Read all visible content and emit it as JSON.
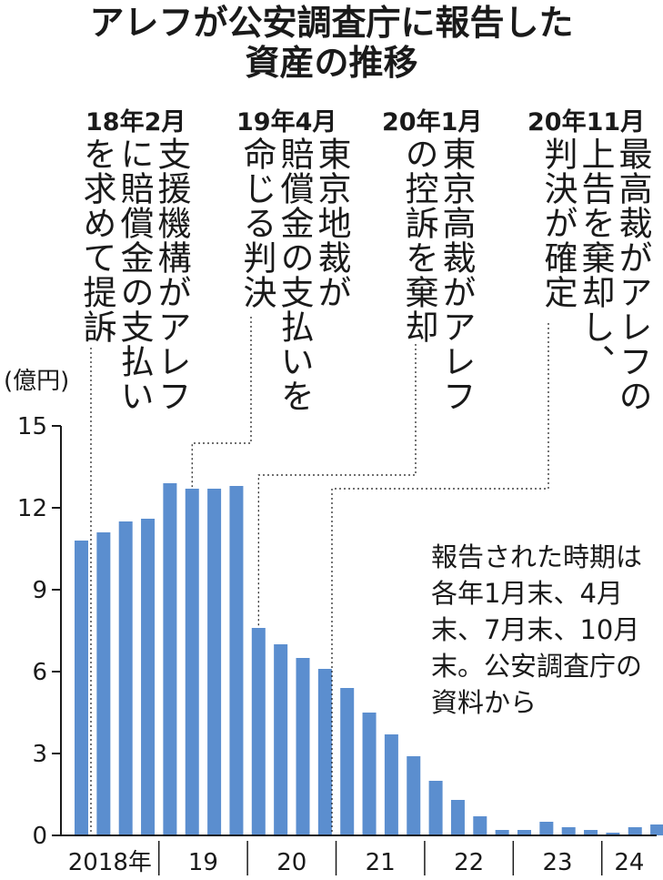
{
  "title_line1": "アレフが公安調査庁に報告した",
  "title_line2": "資産の推移",
  "unit": "(億円)",
  "note": "報告された時期は各年1月末、4月末、7月末、10月末。公安調査庁の資料から",
  "events": [
    {
      "date": "18年2月",
      "text": "支援機構がアレフ\nに賠償金の支払い\nを求めて提訴"
    },
    {
      "date": "19年4月",
      "text": "東京地裁が\n賠償金の支払いを\n命じる判決"
    },
    {
      "date": "20年1月",
      "text": "東京高裁がアレフ\nの控訴を棄却"
    },
    {
      "date": "20年11月",
      "text": "最高裁がアレフの\n上告を棄却し、\n判決が確定"
    }
  ],
  "colors": {
    "bar": "#5b8ecf",
    "text": "#1a1a1a"
  },
  "chart_data": {
    "type": "bar",
    "ylim": [
      0,
      15
    ],
    "yticks": [
      "15",
      "12",
      "9",
      "6",
      "3",
      "0"
    ],
    "year_labels": [
      "2018年",
      "19",
      "20",
      "21",
      "22",
      "23",
      "24"
    ],
    "values": [
      10.8,
      11.1,
      11.5,
      11.6,
      12.9,
      12.7,
      12.7,
      12.8,
      7.6,
      7.0,
      6.5,
      6.1,
      5.4,
      4.5,
      3.7,
      2.9,
      2.0,
      1.3,
      0.7,
      0.2,
      0.2,
      0.5,
      0.3,
      0.2,
      0.1,
      0.3,
      0.4
    ]
  }
}
